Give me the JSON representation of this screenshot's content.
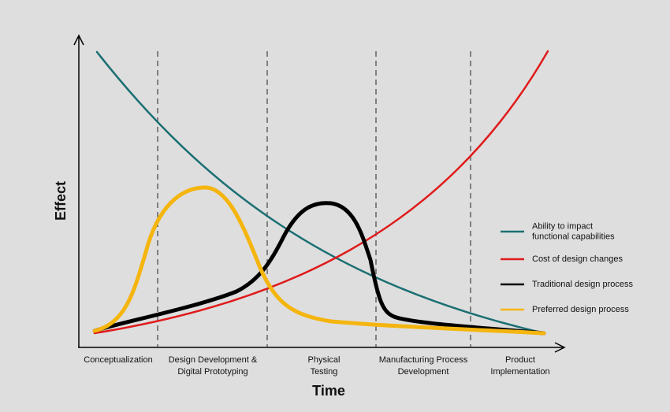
{
  "axes": {
    "y_label": "Effect",
    "x_label": "Time"
  },
  "phases": [
    [
      "Conceptualization"
    ],
    [
      "Design Development &",
      "Digital Prototyping"
    ],
    [
      "Physical",
      "Testing"
    ],
    [
      "Manufacturing Process",
      "Development"
    ],
    [
      "Product",
      "Implementation"
    ]
  ],
  "legend": [
    {
      "label": [
        "Ability to impact",
        "functional capabilities"
      ],
      "color": "#1b6f73"
    },
    {
      "label": [
        "Cost of design changes"
      ],
      "color": "#e01b1b"
    },
    {
      "label": [
        "Traditional design process"
      ],
      "color": "#000000"
    },
    {
      "label": [
        "Preferred design process"
      ],
      "color": "#f5b50f"
    }
  ]
}
